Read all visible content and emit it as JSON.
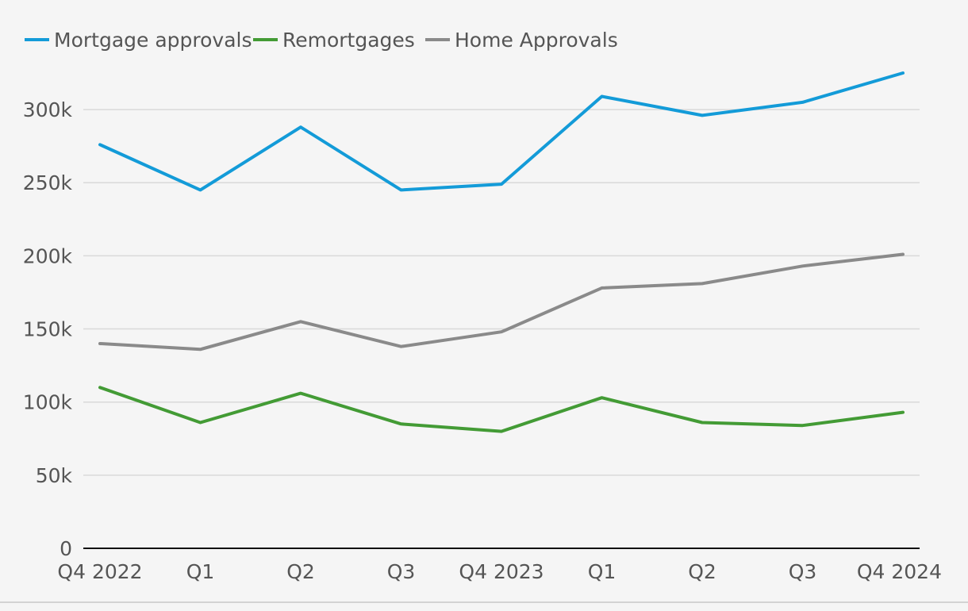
{
  "chart_data": {
    "type": "line",
    "title": "",
    "xlabel": "",
    "ylabel": "",
    "categories": [
      "Q4 2022",
      "Q1",
      "Q2",
      "Q3",
      "Q4 2023",
      "Q1",
      "Q2",
      "Q3",
      "Q4 2024"
    ],
    "ylim": [
      0,
      325000
    ],
    "yticks": [
      0,
      50000,
      100000,
      150000,
      200000,
      250000,
      300000
    ],
    "ytick_labels": [
      "0",
      "50k",
      "100k",
      "150k",
      "200k",
      "250k",
      "300k"
    ],
    "grid": true,
    "legend_position": "top-left",
    "series": [
      {
        "name": "Mortgage approvals",
        "color": "#139bd8",
        "values": [
          276000,
          245000,
          288000,
          245000,
          249000,
          309000,
          296000,
          305000,
          325000
        ]
      },
      {
        "name": "Remortgages",
        "color": "#439b35",
        "values": [
          110000,
          86000,
          106000,
          85000,
          80000,
          103000,
          86000,
          84000,
          93000
        ]
      },
      {
        "name": "Home Approvals",
        "color": "#8a8a8a",
        "values": [
          140000,
          136000,
          155000,
          138000,
          148000,
          178000,
          181000,
          193000,
          201000
        ]
      }
    ]
  }
}
